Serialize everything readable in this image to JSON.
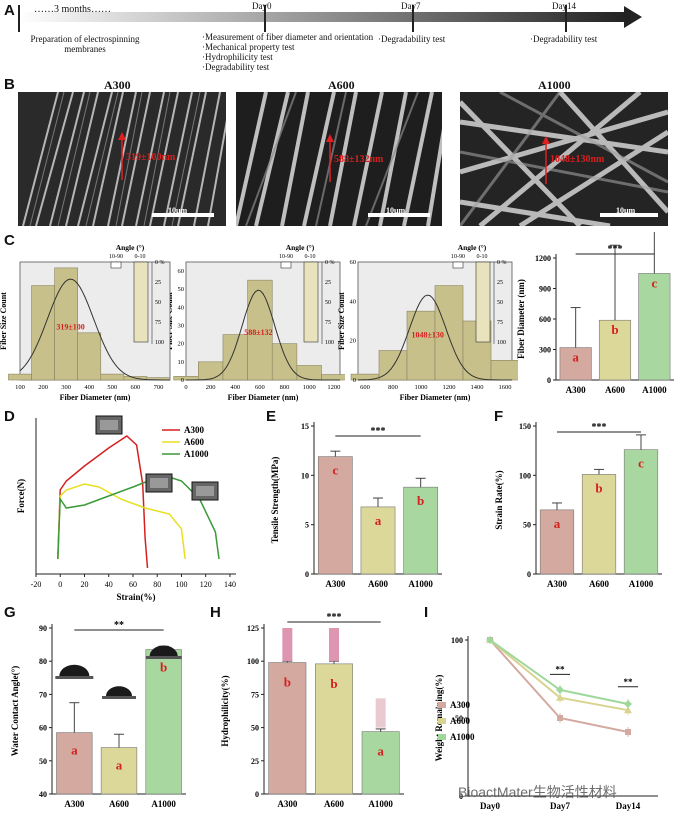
{
  "panels": {
    "A": "A",
    "B": "B",
    "C": "C",
    "D": "D",
    "E": "E",
    "F": "F",
    "G": "G",
    "H": "H",
    "I": "I"
  },
  "timeline": {
    "start_label": "……3 months……",
    "prep": "Preparation of electrospinning membranes",
    "day0": "Day0",
    "day0_items": [
      "·Measurement of fiber diameter and orientation",
      "·Mechanical property test",
      "·Hydrophilicity test",
      "·Degradability test"
    ],
    "day7": "Day7",
    "day7_item": "·Degradability test",
    "day14": "Day14",
    "day14_item": "·Degradability test"
  },
  "sem": [
    {
      "name": "A300",
      "diameter": "319±100nm",
      "scale": "10μm"
    },
    {
      "name": "A600",
      "diameter": "588±132nm",
      "scale": "10μm"
    },
    {
      "name": "A1000",
      "diameter": "1048±130nm",
      "scale": "10μm"
    }
  ],
  "colors": {
    "a300": "#d4a9a0",
    "a600": "#dcd89a",
    "a1000": "#a8d8a0",
    "hist": "#c8c08a",
    "red": "#d62020",
    "green": "#3a9a3a",
    "yellow": "#e6e020",
    "timeline": "#333333"
  },
  "chart_data": [
    {
      "type": "bar",
      "panel": "C-1",
      "title": "",
      "xlabel": "Fiber Diameter",
      "xunit": "(nm)",
      "ylabel": "Fiber Size Count",
      "x": [
        100,
        200,
        300,
        400,
        500,
        600,
        700
      ],
      "values": [
        5,
        80,
        95,
        40,
        5,
        3,
        2
      ],
      "annotation": "319±100",
      "inset": {
        "title": "Angle (°)",
        "labels": [
          "10-90",
          "0-10"
        ],
        "scale": [
          "0 %",
          "25",
          "50",
          "75",
          "100"
        ]
      }
    },
    {
      "type": "bar",
      "panel": "C-2",
      "xlabel": "Fiber Diameter",
      "xunit": "(nm)",
      "ylabel": "Fiber Size Count",
      "x": [
        0,
        200,
        400,
        600,
        800,
        1000,
        1200
      ],
      "values": [
        2,
        10,
        25,
        55,
        20,
        8,
        3
      ],
      "yticks": [
        0,
        10,
        20,
        30,
        40,
        50,
        60
      ],
      "annotation": "588±132",
      "inset": {
        "title": "Angle (°)",
        "labels": [
          "10-90",
          "0-10"
        ],
        "scale": [
          "0 %",
          "25",
          "50",
          "75",
          "100"
        ]
      }
    },
    {
      "type": "bar",
      "panel": "C-3",
      "xlabel": "Fiber Diameter",
      "xunit": "(nm)",
      "ylabel": "Fiber Size Count",
      "x": [
        600,
        800,
        1000,
        1200,
        1400,
        1600
      ],
      "values": [
        3,
        15,
        35,
        48,
        30,
        10
      ],
      "yticks": [
        0,
        20,
        40,
        60
      ],
      "annotation": "1048±130",
      "inset": {
        "title": "Angle (°)",
        "labels": [
          "10-90",
          "0-10"
        ],
        "scale": [
          "0 %",
          "25",
          "50",
          "75",
          "100"
        ]
      }
    },
    {
      "type": "bar",
      "panel": "C-4",
      "ylabel": "Fiber Diameter",
      "yunit": "(nm)",
      "categories": [
        "A300",
        "A600",
        "A1000"
      ],
      "values": [
        319,
        588,
        1048
      ],
      "errors": [
        100,
        132,
        130
      ],
      "letters": [
        "a",
        "b",
        "c"
      ],
      "sig": "***",
      "ylim": [
        0,
        1200
      ],
      "yticks": [
        0,
        300,
        600,
        900,
        1200
      ]
    },
    {
      "type": "line",
      "panel": "D",
      "xlabel": "Strain(%)",
      "ylabel": "Force(N)",
      "xticks": [
        -20,
        0,
        20,
        40,
        60,
        80,
        100,
        120,
        140
      ],
      "series": [
        {
          "name": "A300"
        },
        {
          "name": "A600"
        },
        {
          "name": "A1000"
        }
      ]
    },
    {
      "type": "bar",
      "panel": "E",
      "ylabel": "Tensile Strength(MPa)",
      "categories": [
        "A300",
        "A600",
        "A1000"
      ],
      "values": [
        11.9,
        6.8,
        8.8
      ],
      "letters": [
        "c",
        "a",
        "b"
      ],
      "sig": "***",
      "ylim": [
        0,
        15
      ],
      "yticks": [
        0,
        5,
        10,
        15
      ]
    },
    {
      "type": "bar",
      "panel": "F",
      "ylabel": "Strain Rate(%)",
      "categories": [
        "A300",
        "A600",
        "A1000"
      ],
      "values": [
        65,
        101,
        126
      ],
      "letters": [
        "a",
        "b",
        "c"
      ],
      "sig": "***",
      "ylim": [
        0,
        150
      ],
      "yticks": [
        0,
        50,
        100,
        150
      ]
    },
    {
      "type": "bar",
      "panel": "G",
      "ylabel": "Water Contact Angle(°)",
      "categories": [
        "A300",
        "A600",
        "A1000"
      ],
      "values": [
        58.5,
        54,
        83.5
      ],
      "letters": [
        "a",
        "a",
        "b"
      ],
      "sig": "**",
      "ylim": [
        40,
        90
      ],
      "yticks": [
        40,
        50,
        60,
        70,
        80,
        90
      ]
    },
    {
      "type": "bar",
      "panel": "H",
      "ylabel": "Hydrophilicity(%)",
      "categories": [
        "A300",
        "A600",
        "A1000"
      ],
      "values": [
        99,
        98,
        47
      ],
      "letters": [
        "b",
        "b",
        "a"
      ],
      "sig": "***",
      "ylim": [
        0,
        125
      ],
      "yticks": [
        0,
        25,
        50,
        75,
        100,
        125
      ]
    },
    {
      "type": "line",
      "panel": "I",
      "ylabel": "Weight Remaining(%)",
      "categories": [
        "Day0",
        "Day7",
        "Day14"
      ],
      "yticks": [
        0,
        50,
        100
      ],
      "series": [
        {
          "name": "A300",
          "values": [
            100,
            50,
            41
          ]
        },
        {
          "name": "A600",
          "values": [
            100,
            63,
            55
          ]
        },
        {
          "name": "A1000",
          "values": [
            100,
            68,
            59
          ]
        }
      ],
      "sig": [
        "**",
        "**"
      ]
    }
  ],
  "watermark": "BioactMater生物活性材料"
}
